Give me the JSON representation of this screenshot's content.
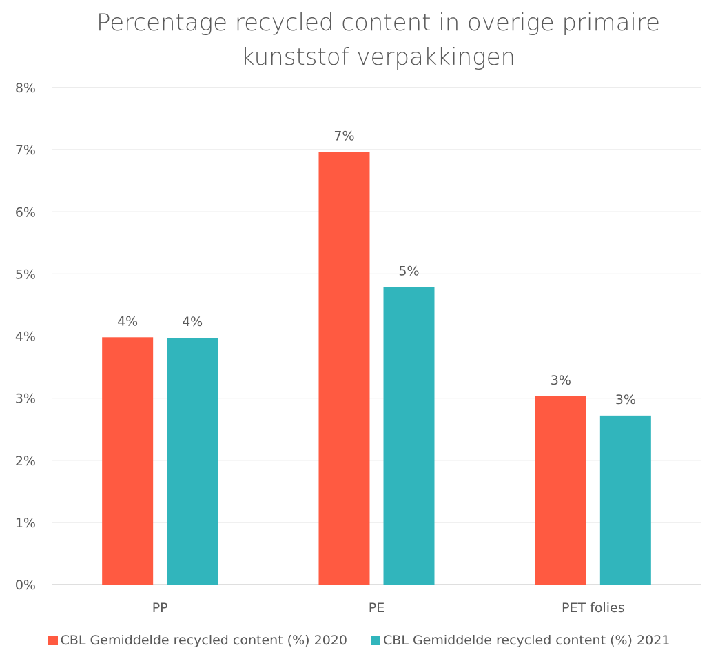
{
  "chart_data": {
    "type": "bar",
    "title_line1": "Percentage recycled content in overige primaire",
    "title_line2": "kunststof verpakkingen",
    "categories": [
      "PP",
      "PE",
      "PET folies"
    ],
    "series": [
      {
        "name": "CBL Gemiddelde recycled content (%) 2020",
        "color": "#ff5a41",
        "values": [
          3.98,
          6.96,
          3.03
        ],
        "labels": [
          "4%",
          "7%",
          "3%"
        ]
      },
      {
        "name": "CBL Gemiddelde recycled content (%) 2021",
        "color": "#31b5bc",
        "values": [
          3.97,
          4.79,
          2.72
        ],
        "labels": [
          "4%",
          "5%",
          "3%"
        ]
      }
    ],
    "ylim": [
      0,
      8
    ],
    "yticks": [
      "0%",
      "1%",
      "2%",
      "3%",
      "4%",
      "5%",
      "6%",
      "7%",
      "8%"
    ],
    "grid": true,
    "legend": "bottom"
  }
}
